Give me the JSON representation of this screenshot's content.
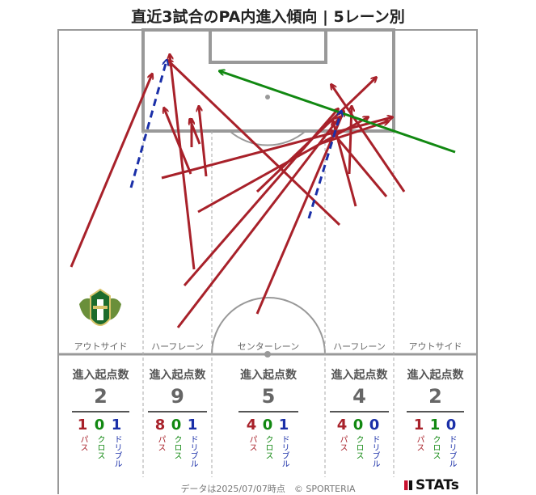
{
  "title": "直近3試合のPA内進入傾向 | 5レーン別",
  "lanes": [
    {
      "label": "アウトサイド",
      "header": "進入起点数",
      "total": "2",
      "pass": "1",
      "cross": "0",
      "dribble": "1"
    },
    {
      "label": "ハーフレーン",
      "header": "進入起点数",
      "total": "9",
      "pass": "8",
      "cross": "0",
      "dribble": "1"
    },
    {
      "label": "センターレーン",
      "header": "進入起点数",
      "total": "5",
      "pass": "4",
      "cross": "0",
      "dribble": "1"
    },
    {
      "label": "ハーフレーン",
      "header": "進入起点数",
      "total": "4",
      "pass": "4",
      "cross": "0",
      "dribble": "0"
    },
    {
      "label": "アウトサイド",
      "header": "進入起点数",
      "total": "2",
      "pass": "1",
      "cross": "1",
      "dribble": "0"
    }
  ],
  "captions": {
    "pass": "パス",
    "cross": "クロス",
    "dribble": "ドリブル"
  },
  "colors": {
    "pass": "#a8212a",
    "cross": "#118811",
    "dribble": "#1a2fa8",
    "pitch_line": "#999999"
  },
  "footer": "データは2025/07/07時点　© SPORTERIA",
  "brand": "STATs",
  "emblem": "club-crest-icon"
}
